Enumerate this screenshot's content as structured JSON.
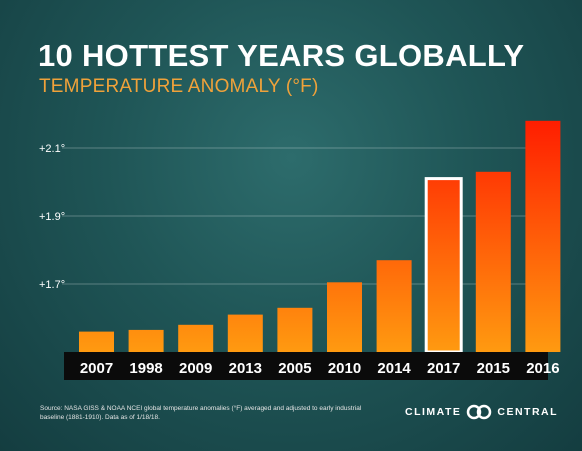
{
  "header": {
    "title": "10 HOTTEST YEARS GLOBALLY",
    "subtitle": "TEMPERATURE ANOMALY (°F)"
  },
  "footer": {
    "source": "Source: NASA GISS & NOAA NCEI global temperature anomalies (°F) averaged and adjusted to early industrial baseline (1881-1910). Data as of 1/18/18.",
    "brand_left": "CLIMATE",
    "brand_right": "CENTRAL"
  },
  "colors": {
    "background": "#1f5556",
    "bar_bottom": "#ff9a10",
    "bar_top": "#ff1a00",
    "highlight_outline": "#ffffff",
    "label_band": "#0b0b0b"
  },
  "chart_data": {
    "type": "bar",
    "categories": [
      "2007",
      "1998",
      "2009",
      "2013",
      "2005",
      "2010",
      "2014",
      "2017",
      "2015",
      "2016"
    ],
    "values": [
      1.56,
      1.565,
      1.58,
      1.61,
      1.63,
      1.705,
      1.77,
      2.01,
      2.03,
      2.18
    ],
    "highlighted": "2017",
    "ytick_labels": [
      "+1.7°",
      "+1.9°",
      "+2.1°"
    ],
    "ytick_values": [
      1.7,
      1.9,
      2.1
    ],
    "ylim": [
      1.5,
      2.3
    ],
    "grid": true
  }
}
